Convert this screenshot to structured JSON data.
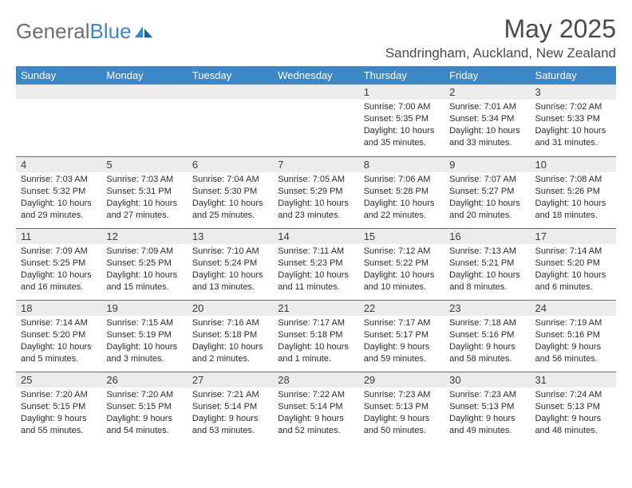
{
  "logo": {
    "text_gray": "General",
    "text_blue": "Blue"
  },
  "title": "May 2025",
  "location": "Sandringham, Auckland, New Zealand",
  "colors": {
    "header_bg": "#3b87c8",
    "header_text": "#ffffff",
    "daynum_bg": "#ececec",
    "border": "#6b6b6b",
    "logo_gray": "#6e6e6e",
    "logo_blue": "#3b87c8",
    "text": "#2b2b2b"
  },
  "weekdays": [
    "Sunday",
    "Monday",
    "Tuesday",
    "Wednesday",
    "Thursday",
    "Friday",
    "Saturday"
  ],
  "weeks": [
    [
      {
        "day": "",
        "lines": []
      },
      {
        "day": "",
        "lines": []
      },
      {
        "day": "",
        "lines": []
      },
      {
        "day": "",
        "lines": []
      },
      {
        "day": "1",
        "lines": [
          "Sunrise: 7:00 AM",
          "Sunset: 5:35 PM",
          "Daylight: 10 hours and 35 minutes."
        ]
      },
      {
        "day": "2",
        "lines": [
          "Sunrise: 7:01 AM",
          "Sunset: 5:34 PM",
          "Daylight: 10 hours and 33 minutes."
        ]
      },
      {
        "day": "3",
        "lines": [
          "Sunrise: 7:02 AM",
          "Sunset: 5:33 PM",
          "Daylight: 10 hours and 31 minutes."
        ]
      }
    ],
    [
      {
        "day": "4",
        "lines": [
          "Sunrise: 7:03 AM",
          "Sunset: 5:32 PM",
          "Daylight: 10 hours and 29 minutes."
        ]
      },
      {
        "day": "5",
        "lines": [
          "Sunrise: 7:03 AM",
          "Sunset: 5:31 PM",
          "Daylight: 10 hours and 27 minutes."
        ]
      },
      {
        "day": "6",
        "lines": [
          "Sunrise: 7:04 AM",
          "Sunset: 5:30 PM",
          "Daylight: 10 hours and 25 minutes."
        ]
      },
      {
        "day": "7",
        "lines": [
          "Sunrise: 7:05 AM",
          "Sunset: 5:29 PM",
          "Daylight: 10 hours and 23 minutes."
        ]
      },
      {
        "day": "8",
        "lines": [
          "Sunrise: 7:06 AM",
          "Sunset: 5:28 PM",
          "Daylight: 10 hours and 22 minutes."
        ]
      },
      {
        "day": "9",
        "lines": [
          "Sunrise: 7:07 AM",
          "Sunset: 5:27 PM",
          "Daylight: 10 hours and 20 minutes."
        ]
      },
      {
        "day": "10",
        "lines": [
          "Sunrise: 7:08 AM",
          "Sunset: 5:26 PM",
          "Daylight: 10 hours and 18 minutes."
        ]
      }
    ],
    [
      {
        "day": "11",
        "lines": [
          "Sunrise: 7:09 AM",
          "Sunset: 5:25 PM",
          "Daylight: 10 hours and 16 minutes."
        ]
      },
      {
        "day": "12",
        "lines": [
          "Sunrise: 7:09 AM",
          "Sunset: 5:25 PM",
          "Daylight: 10 hours and 15 minutes."
        ]
      },
      {
        "day": "13",
        "lines": [
          "Sunrise: 7:10 AM",
          "Sunset: 5:24 PM",
          "Daylight: 10 hours and 13 minutes."
        ]
      },
      {
        "day": "14",
        "lines": [
          "Sunrise: 7:11 AM",
          "Sunset: 5:23 PM",
          "Daylight: 10 hours and 11 minutes."
        ]
      },
      {
        "day": "15",
        "lines": [
          "Sunrise: 7:12 AM",
          "Sunset: 5:22 PM",
          "Daylight: 10 hours and 10 minutes."
        ]
      },
      {
        "day": "16",
        "lines": [
          "Sunrise: 7:13 AM",
          "Sunset: 5:21 PM",
          "Daylight: 10 hours and 8 minutes."
        ]
      },
      {
        "day": "17",
        "lines": [
          "Sunrise: 7:14 AM",
          "Sunset: 5:20 PM",
          "Daylight: 10 hours and 6 minutes."
        ]
      }
    ],
    [
      {
        "day": "18",
        "lines": [
          "Sunrise: 7:14 AM",
          "Sunset: 5:20 PM",
          "Daylight: 10 hours and 5 minutes."
        ]
      },
      {
        "day": "19",
        "lines": [
          "Sunrise: 7:15 AM",
          "Sunset: 5:19 PM",
          "Daylight: 10 hours and 3 minutes."
        ]
      },
      {
        "day": "20",
        "lines": [
          "Sunrise: 7:16 AM",
          "Sunset: 5:18 PM",
          "Daylight: 10 hours and 2 minutes."
        ]
      },
      {
        "day": "21",
        "lines": [
          "Sunrise: 7:17 AM",
          "Sunset: 5:18 PM",
          "Daylight: 10 hours and 1 minute."
        ]
      },
      {
        "day": "22",
        "lines": [
          "Sunrise: 7:17 AM",
          "Sunset: 5:17 PM",
          "Daylight: 9 hours and 59 minutes."
        ]
      },
      {
        "day": "23",
        "lines": [
          "Sunrise: 7:18 AM",
          "Sunset: 5:16 PM",
          "Daylight: 9 hours and 58 minutes."
        ]
      },
      {
        "day": "24",
        "lines": [
          "Sunrise: 7:19 AM",
          "Sunset: 5:16 PM",
          "Daylight: 9 hours and 56 minutes."
        ]
      }
    ],
    [
      {
        "day": "25",
        "lines": [
          "Sunrise: 7:20 AM",
          "Sunset: 5:15 PM",
          "Daylight: 9 hours and 55 minutes."
        ]
      },
      {
        "day": "26",
        "lines": [
          "Sunrise: 7:20 AM",
          "Sunset: 5:15 PM",
          "Daylight: 9 hours and 54 minutes."
        ]
      },
      {
        "day": "27",
        "lines": [
          "Sunrise: 7:21 AM",
          "Sunset: 5:14 PM",
          "Daylight: 9 hours and 53 minutes."
        ]
      },
      {
        "day": "28",
        "lines": [
          "Sunrise: 7:22 AM",
          "Sunset: 5:14 PM",
          "Daylight: 9 hours and 52 minutes."
        ]
      },
      {
        "day": "29",
        "lines": [
          "Sunrise: 7:23 AM",
          "Sunset: 5:13 PM",
          "Daylight: 9 hours and 50 minutes."
        ]
      },
      {
        "day": "30",
        "lines": [
          "Sunrise: 7:23 AM",
          "Sunset: 5:13 PM",
          "Daylight: 9 hours and 49 minutes."
        ]
      },
      {
        "day": "31",
        "lines": [
          "Sunrise: 7:24 AM",
          "Sunset: 5:13 PM",
          "Daylight: 9 hours and 48 minutes."
        ]
      }
    ]
  ]
}
